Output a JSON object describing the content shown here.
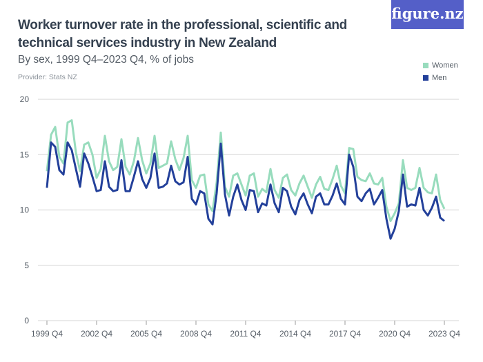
{
  "title": "Worker turnover rate in the professional, scientific and technical services industry in New Zealand",
  "subtitle": "By sex, 1999 Q4–2023 Q4, % of jobs",
  "provider": "Provider: Stats NZ",
  "logo": "figure.nz",
  "chart_data": {
    "type": "line",
    "x_start": "1999 Q4",
    "x_end": "2023 Q4",
    "frequency": "quarterly",
    "x_ticks": [
      "1999 Q4",
      "2002 Q4",
      "2005 Q4",
      "2008 Q4",
      "2011 Q4",
      "2014 Q4",
      "2017 Q4",
      "2020 Q4",
      "2023 Q4"
    ],
    "y_ticks": [
      0,
      5,
      10,
      15,
      20
    ],
    "ylim": [
      0,
      20
    ],
    "grid": true,
    "legend_position": "top-right",
    "series": [
      {
        "name": "Women",
        "color": "#98dcbd",
        "values": [
          13.5,
          16.8,
          17.5,
          14.8,
          14.2,
          17.9,
          18.1,
          15.2,
          13.5,
          15.9,
          16.1,
          15.0,
          12.9,
          13.7,
          16.7,
          14.4,
          13.6,
          13.9,
          16.4,
          13.9,
          13.2,
          14.4,
          16.5,
          14.5,
          13.3,
          14.2,
          16.7,
          13.8,
          14.0,
          14.2,
          16.2,
          14.6,
          13.6,
          14.7,
          16.7,
          12.7,
          12.0,
          13.1,
          13.2,
          10.5,
          9.9,
          12.5,
          17.0,
          12.1,
          11.2,
          13.1,
          13.3,
          12.3,
          11.3,
          13.1,
          13.3,
          11.2,
          11.9,
          11.6,
          13.7,
          11.8,
          11.1,
          12.9,
          13.2,
          11.8,
          11.3,
          12.4,
          13.1,
          12.1,
          11.1,
          12.3,
          13.0,
          11.9,
          11.8,
          12.8,
          14.0,
          12.2,
          11.5,
          15.6,
          15.5,
          13.0,
          12.7,
          12.6,
          13.3,
          12.4,
          12.3,
          12.9,
          10.3,
          9.0,
          9.7,
          10.6,
          14.5,
          12.0,
          11.8,
          12.0,
          13.8,
          12.0,
          11.6,
          11.5,
          13.2,
          10.9,
          10.1
        ]
      },
      {
        "name": "Men",
        "color": "#23409a",
        "values": [
          12.0,
          16.1,
          15.7,
          13.6,
          13.2,
          16.1,
          15.4,
          13.7,
          12.1,
          15.1,
          14.2,
          13.0,
          11.7,
          11.8,
          14.4,
          12.1,
          11.7,
          11.8,
          14.5,
          11.7,
          11.7,
          13.0,
          14.4,
          12.8,
          12.0,
          12.9,
          15.1,
          12.0,
          12.1,
          12.4,
          14.0,
          12.6,
          12.3,
          12.5,
          14.8,
          11.0,
          10.5,
          11.7,
          11.5,
          9.2,
          8.7,
          11.5,
          16.0,
          11.4,
          9.5,
          11.2,
          12.3,
          10.9,
          10.0,
          11.8,
          11.7,
          9.8,
          10.6,
          10.4,
          12.3,
          10.6,
          9.8,
          12.0,
          11.7,
          10.3,
          9.6,
          10.9,
          11.5,
          10.5,
          9.7,
          11.2,
          11.5,
          10.5,
          10.5,
          11.3,
          12.4,
          11.0,
          10.5,
          15.0,
          13.9,
          11.2,
          10.8,
          11.5,
          11.9,
          10.5,
          11.1,
          11.8,
          9.2,
          7.4,
          8.3,
          9.9,
          13.2,
          10.3,
          10.5,
          10.4,
          12.0,
          10.0,
          9.5,
          10.2,
          11.2,
          9.3,
          9.0
        ]
      }
    ]
  }
}
